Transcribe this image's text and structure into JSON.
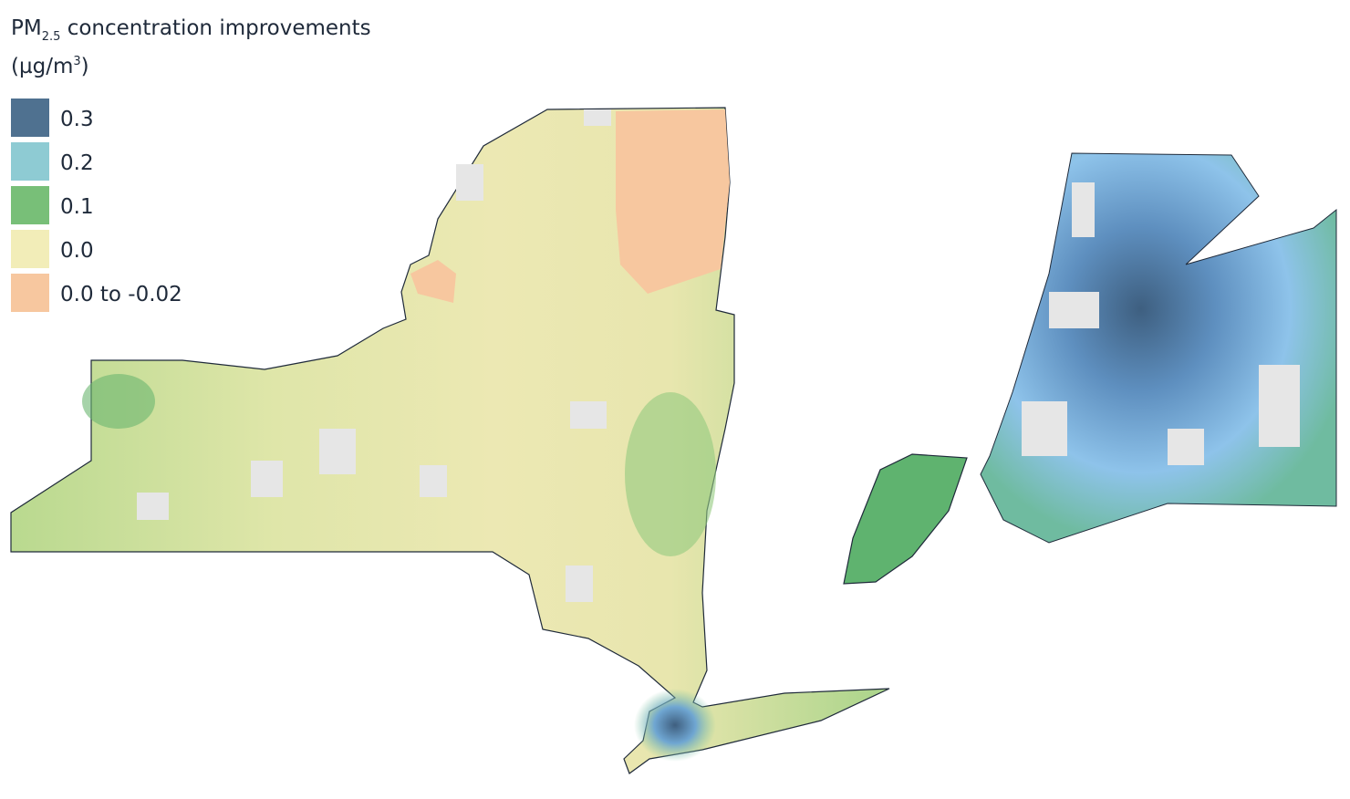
{
  "legend": {
    "title": {
      "main": "PM",
      "subscript": "2.5",
      "rest": " concentration improvements"
    },
    "unit": {
      "main": "(µg/m",
      "superscript": "3",
      "close": ")"
    },
    "items": [
      {
        "label": "0.3",
        "color": "#4f7190"
      },
      {
        "label": "0.2",
        "color": "#8ecbd3"
      },
      {
        "label": "0.1",
        "color": "#78bf78"
      },
      {
        "label": "0.0",
        "color": "#f2edb8"
      },
      {
        "label": "0.0 to -0.02",
        "color": "#f7c79f"
      }
    ]
  }
}
